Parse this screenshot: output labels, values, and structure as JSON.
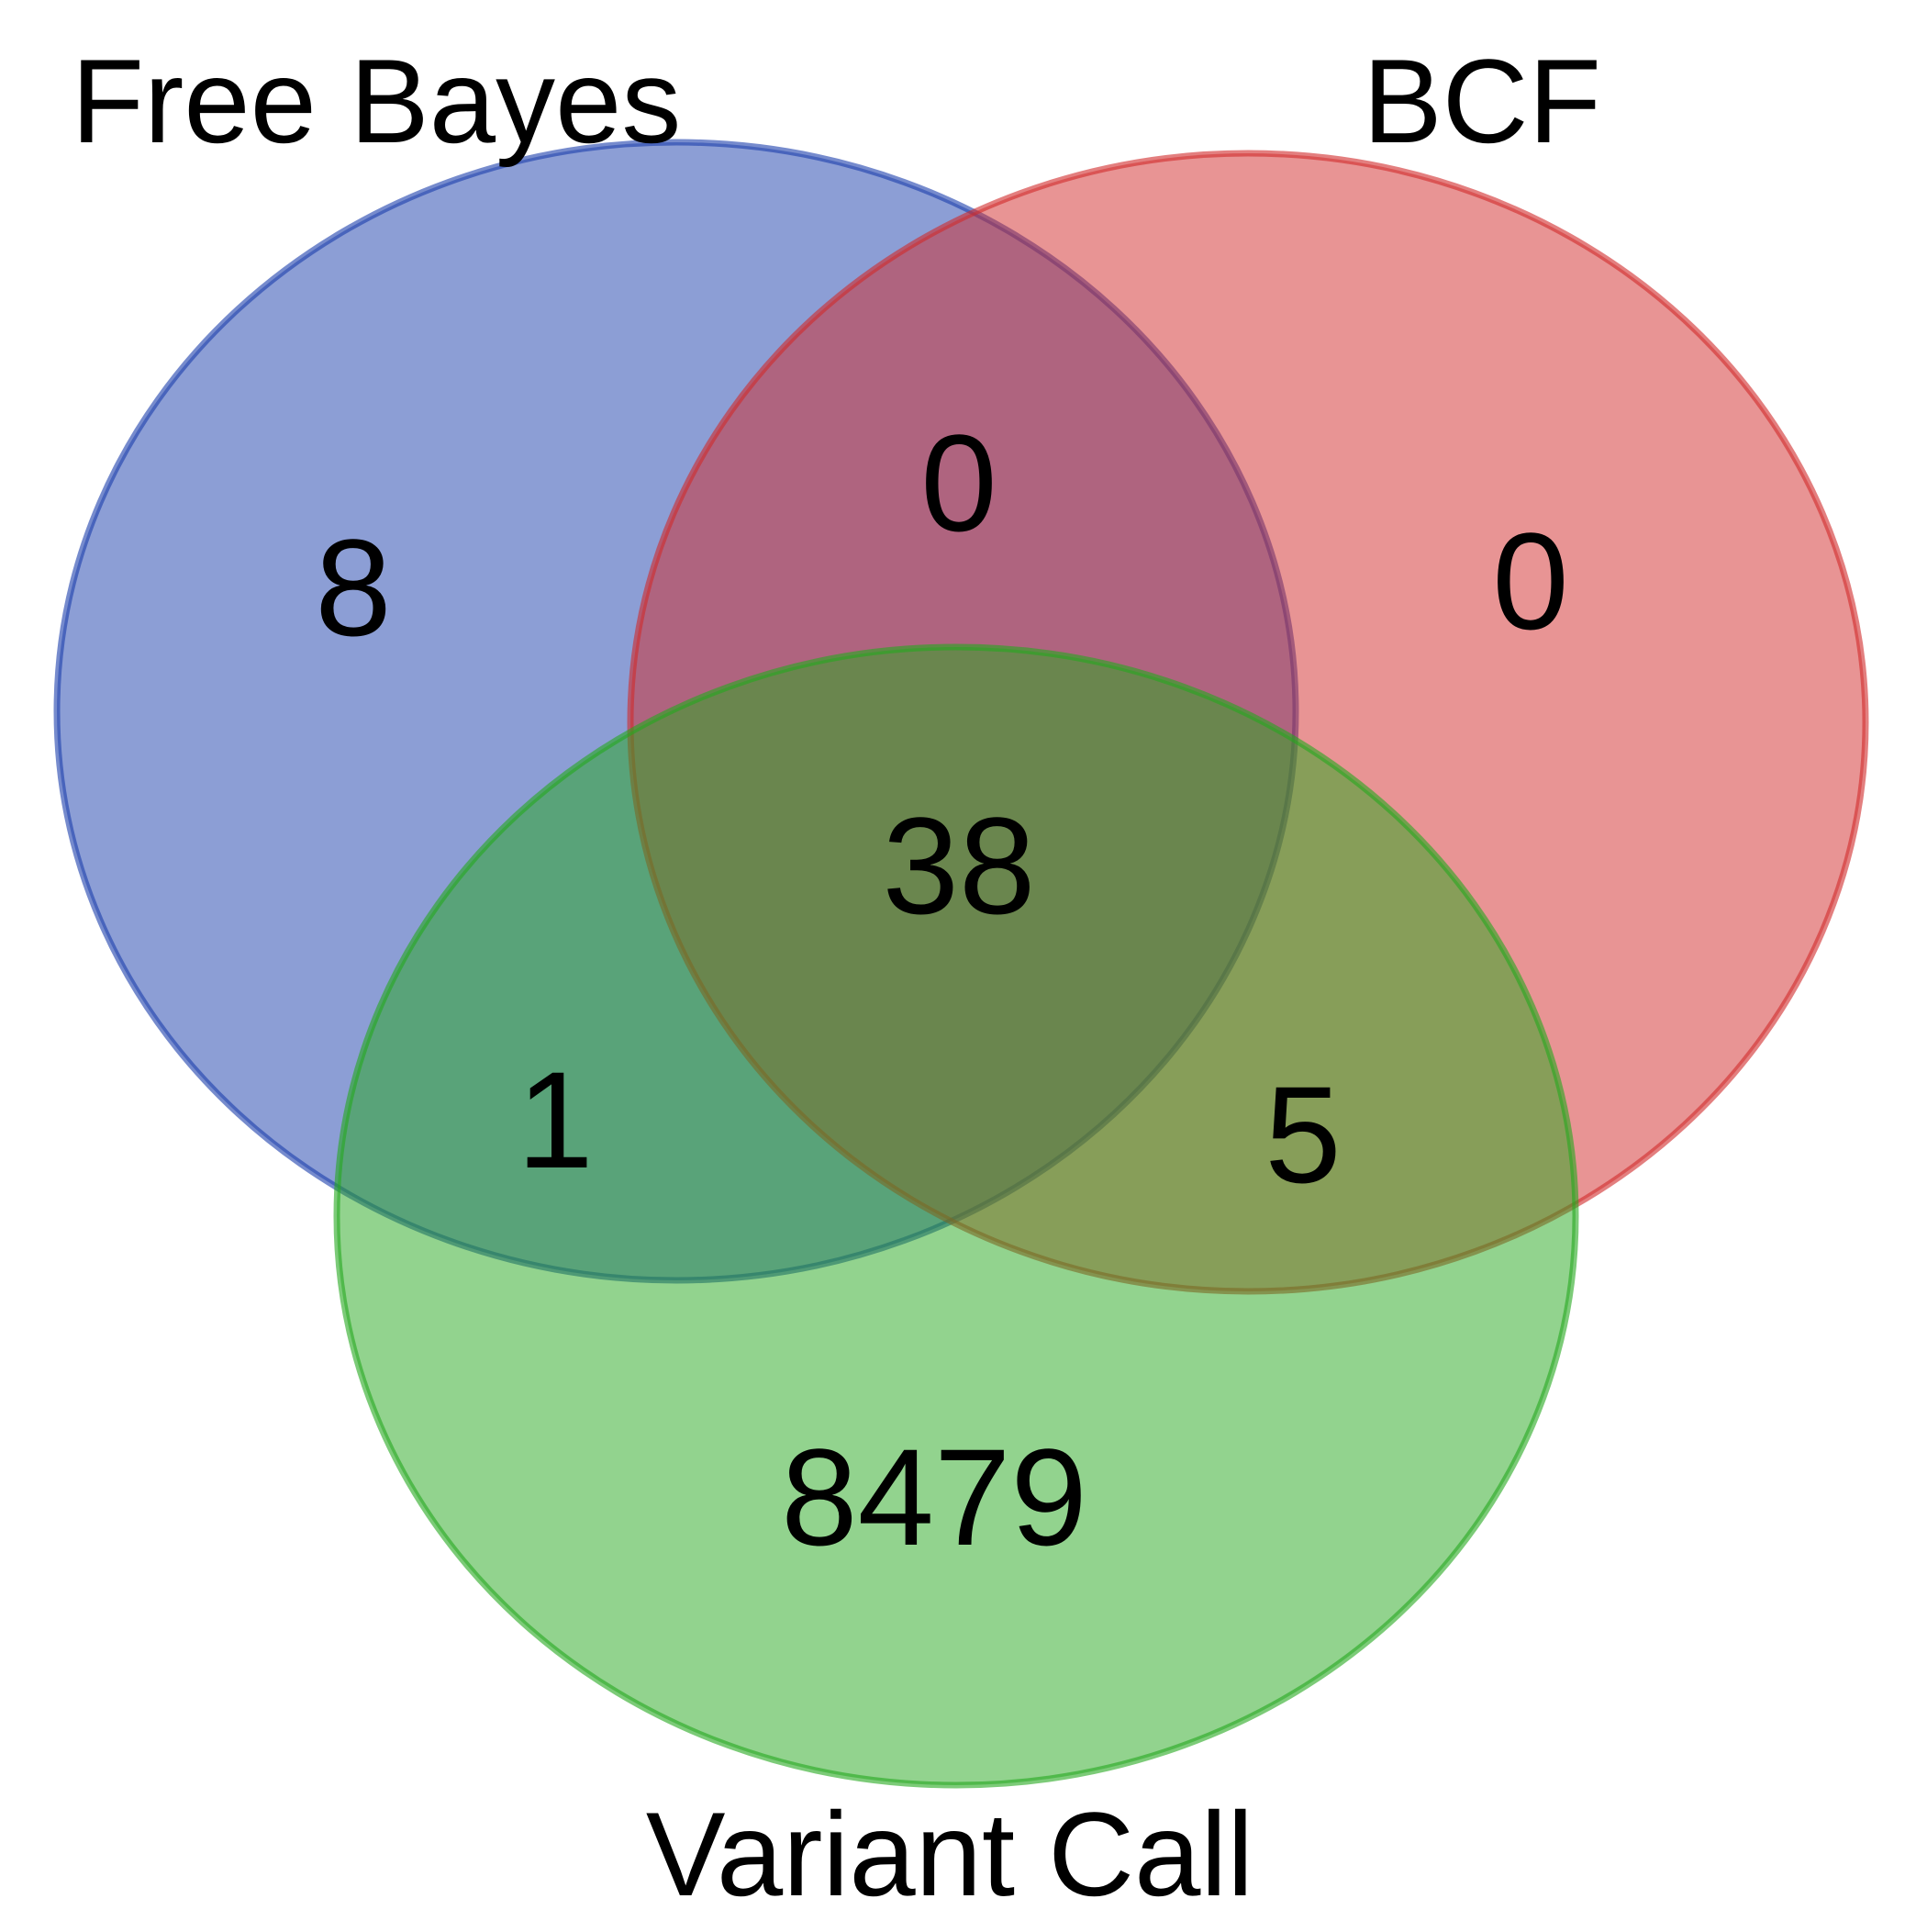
{
  "diagram": {
    "type": "venn3",
    "sets": [
      {
        "id": "free_bayes",
        "label": "Free Bayes",
        "fill": "#1a3eab",
        "stroke": "#1a3eab"
      },
      {
        "id": "bcf",
        "label": "BCF",
        "fill": "#d12a2a",
        "stroke": "#d12a2a"
      },
      {
        "id": "variant_call",
        "label": "Variant Call",
        "fill": "#25a81e",
        "stroke": "#25a81e"
      }
    ],
    "regions": {
      "free_bayes_only": "8",
      "bcf_only": "0",
      "variant_call_only": "8479",
      "free_bayes_and_bcf": "0",
      "free_bayes_and_variant_call": "1",
      "bcf_and_variant_call": "5",
      "all_three": "38"
    }
  }
}
